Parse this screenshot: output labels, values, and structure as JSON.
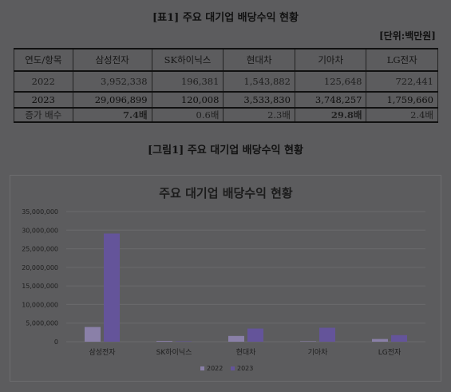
{
  "table": {
    "title": "[표1] 주요 대기업 배당수익 현황",
    "unit": "[단위:백만원]",
    "header_label": "연도/항목",
    "companies": [
      "삼성전자",
      "SK하이닉스",
      "현대차",
      "기아차",
      "LG전자"
    ],
    "rows": [
      {
        "label": "2022",
        "values": [
          "3,952,338",
          "196,381",
          "1,543,882",
          "125,648",
          "722,441"
        ]
      },
      {
        "label": "2023",
        "values": [
          "29,096,899",
          "120,008",
          "3,533,830",
          "3,748,257",
          "1,759,660"
        ]
      },
      {
        "label": "증가 배수",
        "values": [
          "7.4배",
          "0.6배",
          "2.3배",
          "29.8배",
          "2.4배"
        ]
      }
    ]
  },
  "figure": {
    "title": "[그림1] 주요 대기업 배당수익 현황"
  },
  "chart_data": {
    "type": "bar",
    "title": "주요 대기업 배당수익 현황",
    "categories": [
      "삼성전자",
      "SK하이닉스",
      "현대차",
      "기아차",
      "LG전자"
    ],
    "series": [
      {
        "name": "2022",
        "values": [
          3952338,
          196381,
          1543882,
          125648,
          722441
        ]
      },
      {
        "name": "2023",
        "values": [
          29096899,
          120008,
          3533830,
          3748257,
          1759660
        ]
      }
    ],
    "ylim": [
      0,
      35000000
    ],
    "yticks": [
      "0",
      "5,000,000",
      "10,000,000",
      "15,000,000",
      "20,000,000",
      "25,000,000",
      "30,000,000",
      "35,000,000"
    ],
    "ytick_values": [
      0,
      5000000,
      10000000,
      15000000,
      20000000,
      25000000,
      30000000,
      35000000
    ],
    "grid": true,
    "legend_position": "bottom",
    "colors": {
      "2022": "#8a80a8",
      "2023": "#64549a"
    }
  }
}
